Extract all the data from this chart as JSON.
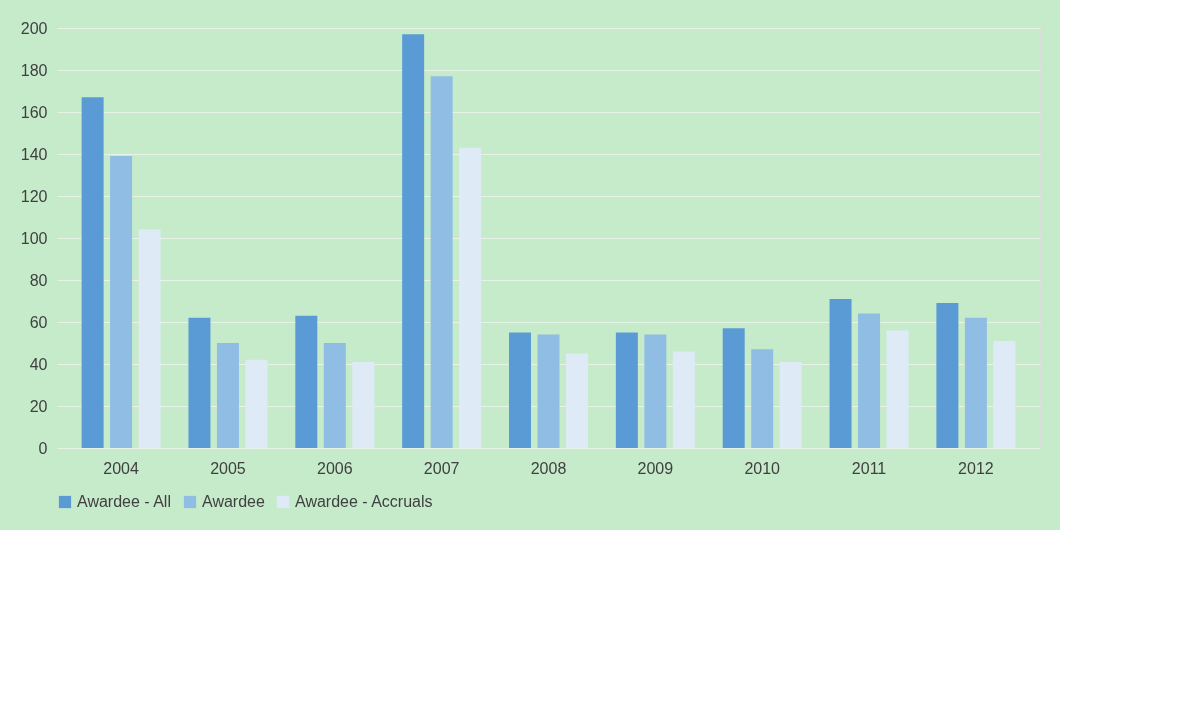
{
  "chart_data": {
    "type": "bar",
    "categories": [
      "2004",
      "2005",
      "2006",
      "2007",
      "2008",
      "2009",
      "2010",
      "2011",
      "2012"
    ],
    "series": [
      {
        "name": "Awardee - All",
        "color": "#5b9bd5",
        "values": [
          167,
          62,
          63,
          197,
          55,
          55,
          57,
          71,
          69
        ]
      },
      {
        "name": "Awardee",
        "color": "#8fbde3",
        "values": [
          139,
          50,
          50,
          177,
          54,
          54,
          47,
          64,
          62
        ]
      },
      {
        "name": "Awardee - Accruals",
        "color": "#deebf7",
        "values": [
          104,
          42,
          41,
          143,
          45,
          46,
          41,
          56,
          51
        ]
      }
    ],
    "ylim": [
      0,
      200
    ],
    "yticks": [
      0,
      20,
      40,
      60,
      80,
      100,
      120,
      140,
      160,
      180,
      200
    ],
    "grid": "y",
    "legend": "bottom"
  }
}
